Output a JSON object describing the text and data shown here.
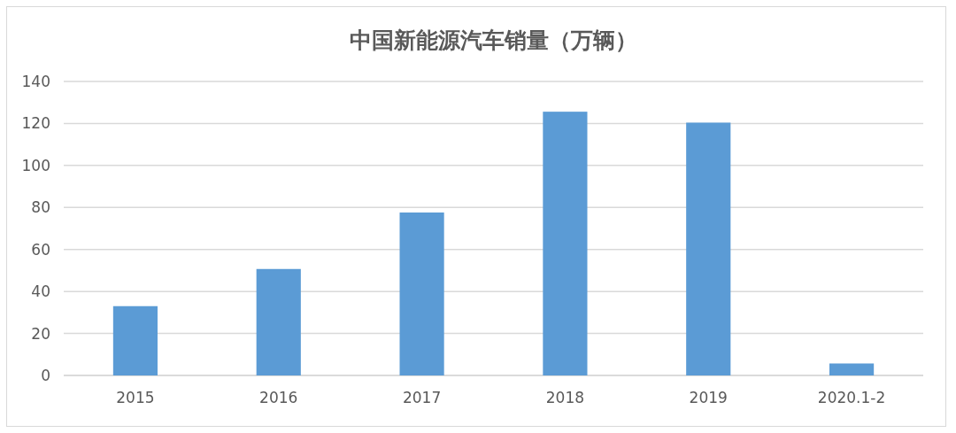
{
  "chart_data": {
    "type": "bar",
    "title": "中国新能源汽车销量（万辆）",
    "categories": [
      "2015",
      "2016",
      "2017",
      "2018",
      "2019",
      "2020.1-2"
    ],
    "values": [
      33,
      50.7,
      77.6,
      125.6,
      120.4,
      5.7
    ],
    "color": "#5b9bd5",
    "ylim": [
      0,
      140
    ],
    "yticks": [
      0,
      20,
      40,
      60,
      80,
      100,
      120,
      140
    ],
    "grid": true
  }
}
